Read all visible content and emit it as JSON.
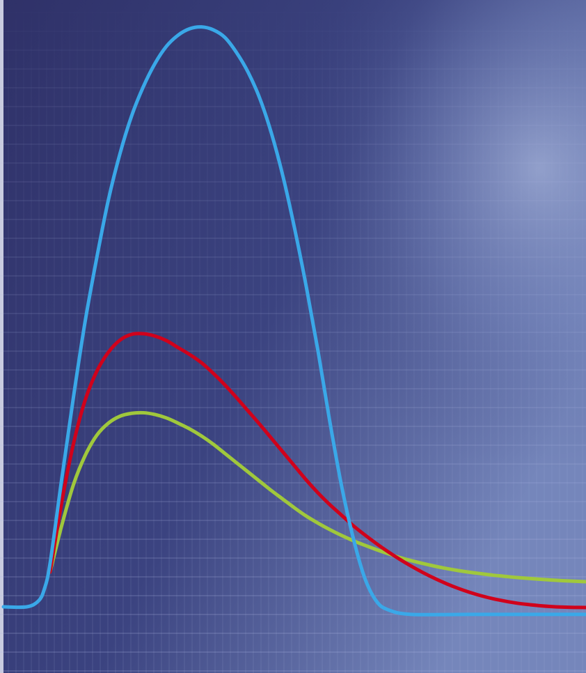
{
  "colors": {
    "background_dark": "#2f3168",
    "background_mid": "#3f4a86",
    "background_light": "#8f9fcc",
    "grid": "#b5bfe6",
    "left_edge": "#c9cce0"
  },
  "chart_data": {
    "type": "line",
    "title": "",
    "xlabel": "",
    "ylabel": "",
    "grid": true,
    "legend": "none",
    "xlim": [
      0,
      100
    ],
    "ylim": [
      0,
      100
    ],
    "series": [
      {
        "color": "#3aa8e8",
        "points": [
          [
            0,
            0
          ],
          [
            4,
            0
          ],
          [
            6,
            1
          ],
          [
            7,
            3
          ],
          [
            8,
            7.5
          ],
          [
            10,
            22
          ],
          [
            12,
            36
          ],
          [
            14,
            49
          ],
          [
            16,
            60
          ],
          [
            18,
            70
          ],
          [
            20,
            78
          ],
          [
            22,
            84.5
          ],
          [
            24,
            89.5
          ],
          [
            26,
            93.5
          ],
          [
            28,
            96.5
          ],
          [
            30,
            98.4
          ],
          [
            32,
            99.5
          ],
          [
            34,
            99.8
          ],
          [
            36,
            99.3
          ],
          [
            38,
            98
          ],
          [
            40,
            95.4
          ],
          [
            42,
            92
          ],
          [
            44,
            87.5
          ],
          [
            46,
            81.5
          ],
          [
            48,
            74
          ],
          [
            50,
            65
          ],
          [
            52,
            55
          ],
          [
            54,
            44
          ],
          [
            56,
            32
          ],
          [
            58,
            21
          ],
          [
            60,
            12
          ],
          [
            62,
            5
          ],
          [
            64,
            1
          ],
          [
            66,
            -0.5
          ],
          [
            70,
            -1.3
          ],
          [
            80,
            -1.3
          ],
          [
            90,
            -1.3
          ],
          [
            100,
            -1.3
          ]
        ]
      },
      {
        "color": "#d0021b",
        "points": [
          [
            8,
            6
          ],
          [
            10,
            18
          ],
          [
            12,
            28
          ],
          [
            14,
            35.5
          ],
          [
            16,
            40.5
          ],
          [
            18,
            43.8
          ],
          [
            20,
            45.9
          ],
          [
            22,
            46.9
          ],
          [
            24,
            47
          ],
          [
            26,
            46.6
          ],
          [
            28,
            45.8
          ],
          [
            30,
            44.6
          ],
          [
            32,
            43.4
          ],
          [
            34,
            42
          ],
          [
            36,
            40.2
          ],
          [
            38,
            38.2
          ],
          [
            40,
            36
          ],
          [
            42,
            33.7
          ],
          [
            44,
            31.4
          ],
          [
            46,
            29
          ],
          [
            48,
            26.6
          ],
          [
            50,
            24.2
          ],
          [
            52,
            21.8
          ],
          [
            54,
            19.6
          ],
          [
            56,
            17.6
          ],
          [
            58,
            15.8
          ],
          [
            60,
            14
          ],
          [
            62,
            12.4
          ],
          [
            64,
            10.9
          ],
          [
            66,
            9.5
          ],
          [
            68,
            8.2
          ],
          [
            70,
            7
          ],
          [
            72,
            5.9
          ],
          [
            74,
            4.9
          ],
          [
            76,
            4
          ],
          [
            78,
            3.2
          ],
          [
            80,
            2.5
          ],
          [
            82,
            1.9
          ],
          [
            84,
            1.4
          ],
          [
            86,
            1
          ],
          [
            88,
            0.65
          ],
          [
            90,
            0.4
          ],
          [
            92,
            0.2
          ],
          [
            94,
            0.05
          ],
          [
            96,
            -0.05
          ],
          [
            98,
            -0.1
          ],
          [
            100,
            -0.12
          ]
        ]
      },
      {
        "color": "#a0c83c",
        "points": [
          [
            8,
            6
          ],
          [
            10,
            14
          ],
          [
            12,
            21
          ],
          [
            14,
            26
          ],
          [
            16,
            29.5
          ],
          [
            18,
            31.6
          ],
          [
            20,
            32.8
          ],
          [
            22,
            33.3
          ],
          [
            24,
            33.4
          ],
          [
            26,
            33.1
          ],
          [
            28,
            32.5
          ],
          [
            30,
            31.6
          ],
          [
            32,
            30.6
          ],
          [
            34,
            29.4
          ],
          [
            36,
            28
          ],
          [
            38,
            26.4
          ],
          [
            40,
            24.8
          ],
          [
            42,
            23.2
          ],
          [
            44,
            21.6
          ],
          [
            46,
            20
          ],
          [
            48,
            18.5
          ],
          [
            50,
            17
          ],
          [
            52,
            15.6
          ],
          [
            54,
            14.4
          ],
          [
            56,
            13.3
          ],
          [
            58,
            12.3
          ],
          [
            60,
            11.4
          ],
          [
            62,
            10.6
          ],
          [
            64,
            9.85
          ],
          [
            66,
            9.15
          ],
          [
            68,
            8.5
          ],
          [
            70,
            7.95
          ],
          [
            72,
            7.45
          ],
          [
            74,
            7
          ],
          [
            76,
            6.6
          ],
          [
            78,
            6.25
          ],
          [
            80,
            5.95
          ],
          [
            82,
            5.7
          ],
          [
            84,
            5.45
          ],
          [
            86,
            5.25
          ],
          [
            88,
            5.05
          ],
          [
            90,
            4.9
          ],
          [
            92,
            4.75
          ],
          [
            94,
            4.62
          ],
          [
            96,
            4.5
          ],
          [
            98,
            4.4
          ],
          [
            100,
            4.32
          ]
        ]
      }
    ]
  }
}
